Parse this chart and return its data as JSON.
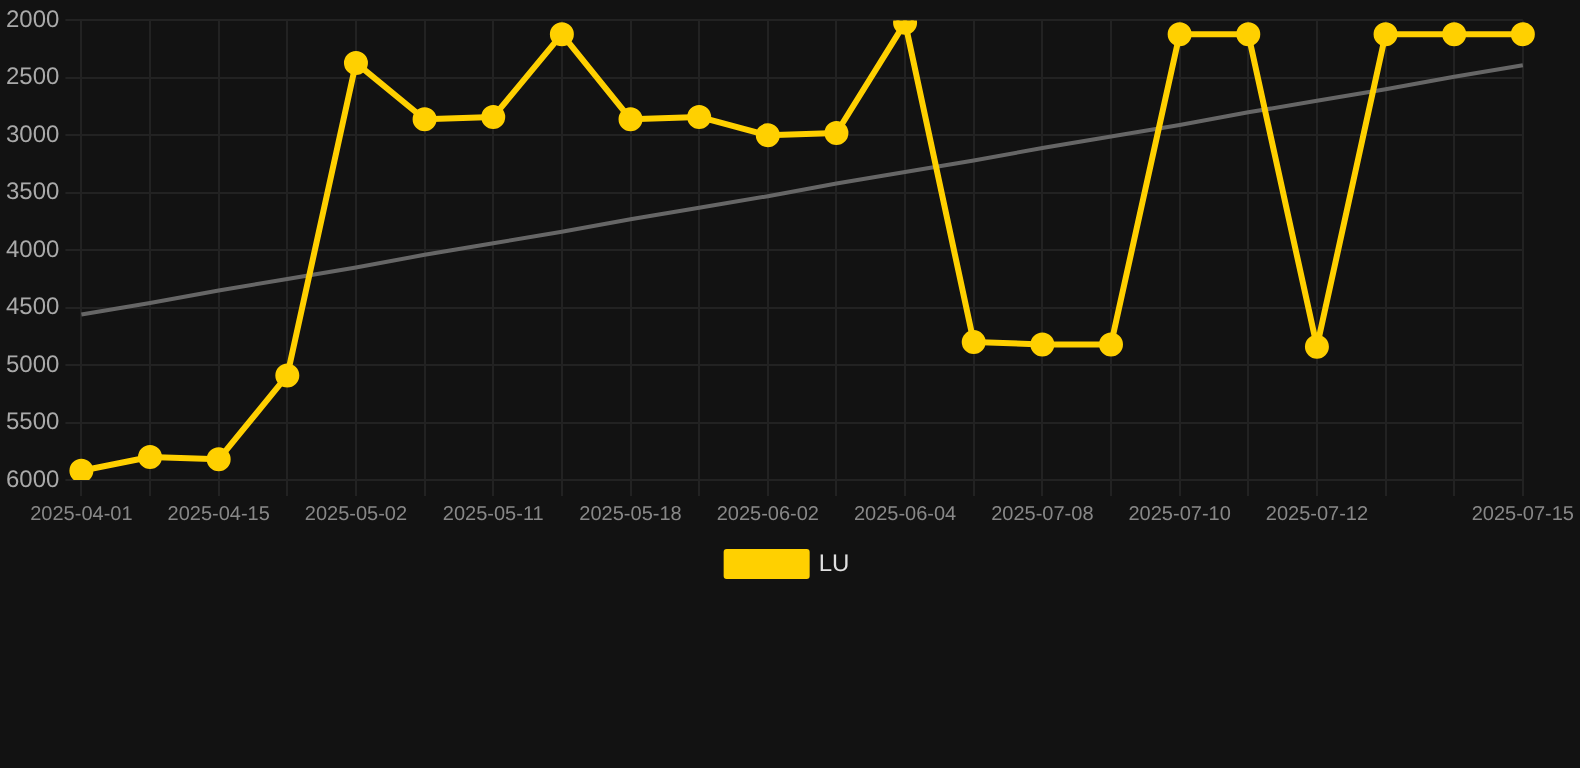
{
  "chart_data": {
    "type": "line",
    "categories": [
      "2025-04-01",
      null,
      "2025-04-15",
      null,
      "2025-05-02",
      null,
      "2025-05-11",
      null,
      "2025-05-18",
      null,
      "2025-06-02",
      null,
      "2025-06-04",
      null,
      "2025-07-08",
      null,
      "2025-07-10",
      null,
      "2025-07-12",
      null,
      null,
      "2025-07-15"
    ],
    "series": [
      {
        "name": "LU",
        "color": "#ffd000",
        "values": [
          5920,
          5800,
          5820,
          5090,
          2370,
          2860,
          2840,
          2120,
          2860,
          2840,
          3000,
          2980,
          2020,
          4800,
          4820,
          4820,
          2120,
          2120,
          4840,
          2120,
          2120,
          2120
        ]
      },
      {
        "type": "line",
        "color": "#666666",
        "marker": "none",
        "values": [
          4560,
          4460,
          4350,
          4250,
          4150,
          4040,
          3940,
          3840,
          3730,
          3630,
          3530,
          3420,
          3320,
          3220,
          3110,
          3010,
          2910,
          2800,
          2700,
          2600,
          2490,
          2390
        ]
      }
    ],
    "ylim": [
      6000,
      2000
    ],
    "yticks": [
      2000,
      2500,
      3000,
      3500,
      4000,
      4500,
      5000,
      5500,
      6000
    ],
    "grid": true,
    "legend": "bottom",
    "marker": "circle",
    "line_style": "solid"
  }
}
